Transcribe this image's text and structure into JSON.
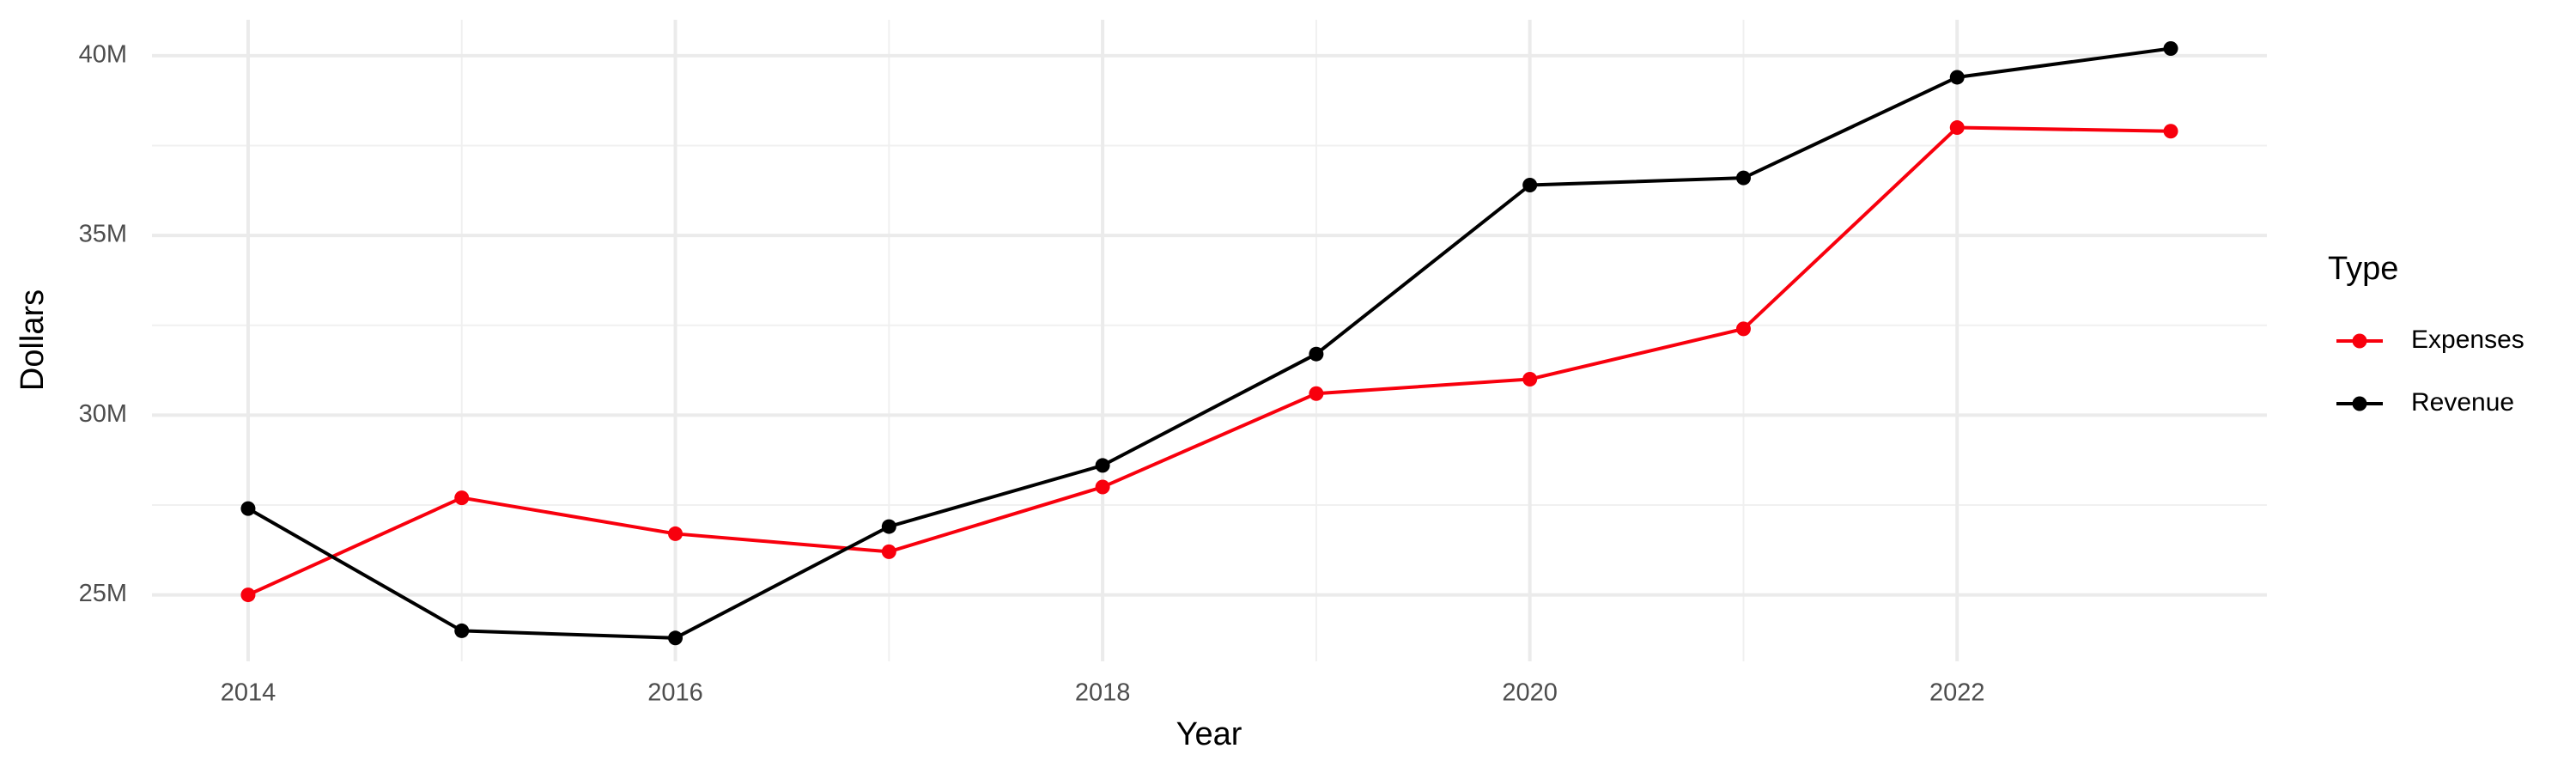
{
  "chart_data": {
    "type": "line",
    "x_label": "Year",
    "y_label": "Dollars",
    "legend_title": "Type",
    "legend": "right",
    "grid": true,
    "x": [
      2014,
      2015,
      2016,
      2017,
      2018,
      2019,
      2020,
      2021,
      2022,
      2023
    ],
    "series": [
      {
        "name": "Expenses",
        "color": "#f8000d",
        "values": [
          25000000,
          27700000,
          26700000,
          26200000,
          28000000,
          30600000,
          31000000,
          32400000,
          38000000,
          37900000
        ]
      },
      {
        "name": "Revenue",
        "color": "#000000",
        "values": [
          27400000,
          24000000,
          23800000,
          26900000,
          28600000,
          31700000,
          36400000,
          36600000,
          39400000,
          40200000
        ]
      }
    ],
    "xlim": [
      2013.55,
      2023.45
    ],
    "xticks": [
      2014,
      2016,
      2018,
      2020,
      2022
    ],
    "ylim": [
      23150000,
      41000000
    ],
    "yticks": [
      {
        "value": 25000000,
        "label": "25M"
      },
      {
        "value": 30000000,
        "label": "30M"
      },
      {
        "value": 35000000,
        "label": "35M"
      },
      {
        "value": 40000000,
        "label": "40M"
      }
    ]
  }
}
